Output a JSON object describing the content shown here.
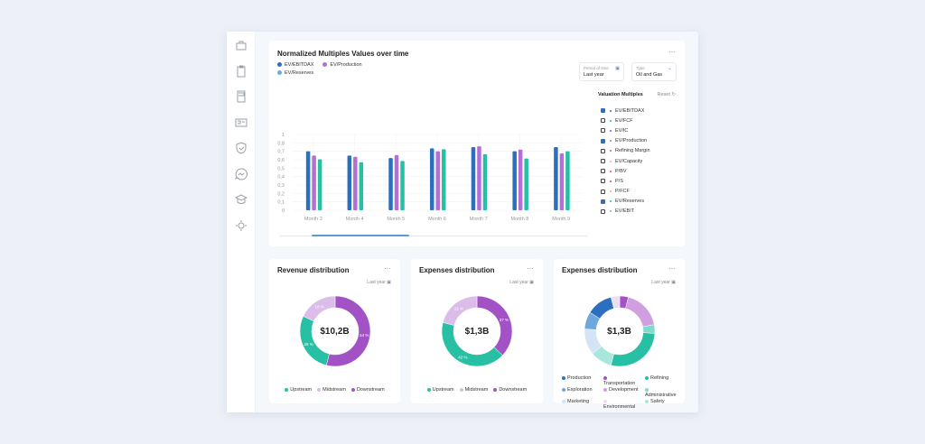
{
  "sidebar": {
    "icons": [
      "briefcase-icon",
      "clipboard-icon",
      "calculator-icon",
      "id-card-icon",
      "shield-check-icon",
      "chat-icon",
      "graduation-cap-icon",
      "settings-icon"
    ]
  },
  "main_chart": {
    "more_label": "···",
    "period": {
      "label": "Period of time",
      "value": "Last year"
    },
    "type": {
      "label": "Type",
      "value": "Oil and Gas"
    },
    "valuation": {
      "title": "Valuation Multiples",
      "reset": "Reset",
      "items": [
        {
          "label": "EV/EBITDAX",
          "checked": true,
          "color": "#2c6fbf"
        },
        {
          "label": "EV/FCF",
          "checked": false,
          "color": "#3aa7d8"
        },
        {
          "label": "EV/IC",
          "checked": false,
          "color": "#7a5bd0"
        },
        {
          "label": "EV/Production",
          "checked": true,
          "color": "#b36fd6"
        },
        {
          "label": "Refining Margin",
          "checked": false,
          "color": "#c85aa8"
        },
        {
          "label": "EV/Capacity",
          "checked": false,
          "color": "#e6a8d8"
        },
        {
          "label": "P/BV",
          "checked": false,
          "color": "#e0506a"
        },
        {
          "label": "P/S",
          "checked": false,
          "color": "#d94a4a"
        },
        {
          "label": "P/FCF",
          "checked": false,
          "color": "#f0c040"
        },
        {
          "label": "EV/Reserves",
          "checked": true,
          "color": "#27c0a4"
        },
        {
          "label": "EV/EBIT",
          "checked": false,
          "color": "#6ab0e0"
        }
      ]
    }
  },
  "chart_data": [
    {
      "type": "bar",
      "title": "Normalized Multiples Values over time",
      "categories": [
        "Month 3",
        "Month 4",
        "Month 5",
        "Month 6",
        "Month 7",
        "Month 8",
        "Month 9"
      ],
      "y_tick_labels": [
        "0",
        "0,1",
        "0,2",
        "0,3",
        "0,4",
        "0,5",
        "0,6",
        "0,7",
        "0,8",
        "1"
      ],
      "grid": true,
      "legend": "top-left",
      "series": [
        {
          "name": "EV/EBITDAX",
          "color": "#2c6fbf",
          "legend_color": "#2c6fbf",
          "values": [
            0.7,
            0.65,
            0.62,
            0.735,
            0.75,
            0.7,
            0.75
          ]
        },
        {
          "name": "EV/Production",
          "color": "#b36fd6",
          "legend_color": "#b36fd6",
          "values": [
            0.65,
            0.635,
            0.655,
            0.7,
            0.76,
            0.72,
            0.675
          ]
        },
        {
          "name": "EV/Reserves",
          "color": "#27c0a4",
          "legend_color": "#6aaee0",
          "values": [
            0.605,
            0.57,
            0.585,
            0.725,
            0.665,
            0.615,
            0.7
          ]
        }
      ]
    },
    {
      "type": "pie",
      "title": "Revenue distribution",
      "period": "Last year",
      "center_label": "$10,2B",
      "slices": [
        {
          "name": "Downstream",
          "value": 54,
          "color": "#a352c6",
          "label": "54 %"
        },
        {
          "name": "Upstream",
          "value": 28,
          "color": "#27c0a4",
          "label": "28 %"
        },
        {
          "name": "Midstream",
          "value": 18,
          "color": "#dcbde9",
          "label": "18 %"
        }
      ],
      "legend_order": [
        "Upstream",
        "Midstream",
        "Downstream"
      ]
    },
    {
      "type": "pie",
      "title": "Expenses distribution",
      "period": "Last year",
      "center_label": "$1,3B",
      "slices": [
        {
          "name": "Downstream",
          "value": 37,
          "color": "#a352c6",
          "label": "37 %"
        },
        {
          "name": "Upstream",
          "value": 42,
          "color": "#27c0a4",
          "label": "42 %"
        },
        {
          "name": "Midstream",
          "value": 21,
          "color": "#dcbde9",
          "label": "21 %"
        }
      ],
      "legend_order": [
        "Upstream",
        "Midstream",
        "Downstream"
      ]
    },
    {
      "type": "pie",
      "title": "Expenses distribution",
      "period": "Last year",
      "center_label": "$1,3B",
      "slices": [
        {
          "name": "Transportation",
          "value": 4,
          "color": "#a352c6"
        },
        {
          "name": "Development",
          "value": 18,
          "color": "#cf9fe0"
        },
        {
          "name": "Administrative",
          "value": 4,
          "color": "#7fdccb"
        },
        {
          "name": "Refining",
          "value": 28,
          "color": "#27c0a4"
        },
        {
          "name": "Safety",
          "value": 10,
          "color": "#a8e8dc"
        },
        {
          "name": "Marketing",
          "value": 12,
          "color": "#d4e4f4"
        },
        {
          "name": "Exploration",
          "value": 8,
          "color": "#6fa8dc"
        },
        {
          "name": "Production",
          "value": 12,
          "color": "#2c6fbf"
        },
        {
          "name": "Environmental",
          "value": 4,
          "color": "#ecdff4"
        }
      ],
      "legend_order": [
        "Production",
        "Transportation",
        "Refining",
        "Exploration",
        "Development",
        "Administrative",
        "Marketing",
        "Environmental",
        "Safety"
      ]
    }
  ]
}
